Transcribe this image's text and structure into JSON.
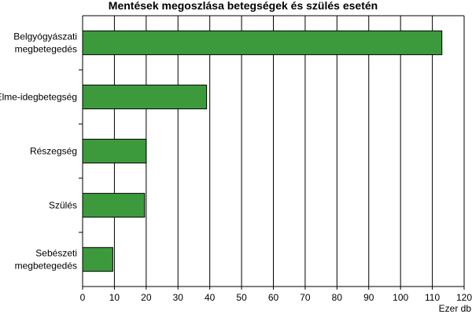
{
  "chart_data": {
    "type": "bar",
    "orientation": "horizontal",
    "title": "Mentések megoszlása betegségek és szülés esetén",
    "xlabel": "Ezer db",
    "ylabel": "",
    "xlim": [
      0,
      120
    ],
    "xticks": [
      0,
      10,
      20,
      30,
      40,
      50,
      60,
      70,
      80,
      90,
      100,
      110,
      120
    ],
    "grid": true,
    "legend": "none",
    "bar_color": "#3c9a3c",
    "categories": [
      [
        "Belgyógyászati",
        "megbetegedés"
      ],
      [
        "Elme-idegbetegség"
      ],
      [
        "Részegség"
      ],
      [
        "Szülés"
      ],
      [
        "Sebészeti",
        "megbetegedés"
      ]
    ],
    "values": [
      113,
      39,
      20,
      19.5,
      9.5
    ]
  }
}
